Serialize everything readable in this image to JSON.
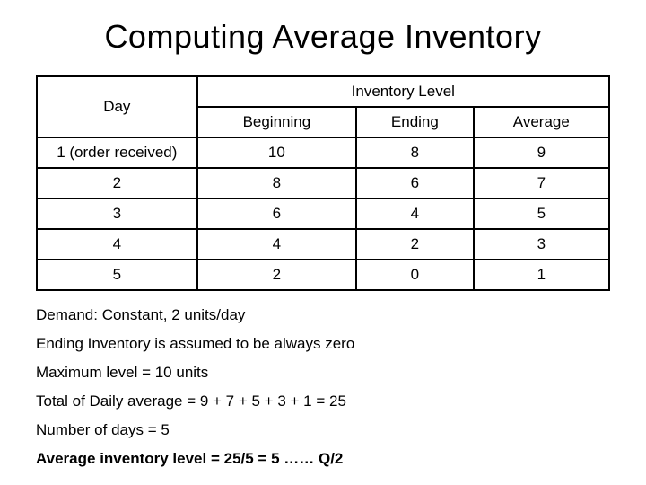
{
  "title": "Computing Average Inventory",
  "table": {
    "day_header": "Day",
    "inventory_header": "Inventory Level",
    "columns": [
      "Beginning",
      "Ending",
      "Average"
    ],
    "rows": [
      {
        "day": "1 (order received)",
        "beginning": "10",
        "ending": "8",
        "average": "9"
      },
      {
        "day": "2",
        "beginning": "8",
        "ending": "6",
        "average": "7"
      },
      {
        "day": "3",
        "beginning": "6",
        "ending": "4",
        "average": "5"
      },
      {
        "day": "4",
        "beginning": "4",
        "ending": "2",
        "average": "3"
      },
      {
        "day": "5",
        "beginning": "2",
        "ending": "0",
        "average": "1"
      }
    ]
  },
  "notes": {
    "line1": "Demand: Constant, 2 units/day",
    "line2": "Ending Inventory is assumed to be always zero",
    "line3": "Maximum level = 10 units",
    "line4": "Total of Daily average = 9 + 7 + 5 + 3 + 1 = 25",
    "line5": "Number of days = 5",
    "line6": "Average inventory level = 25/5 = 5 …… Q/2"
  },
  "styling": {
    "font_family": "Arial",
    "title_fontsize": 36,
    "cell_fontsize": 17,
    "notes_fontsize": 17,
    "border_color": "#000000",
    "border_width": 2,
    "background_color": "#ffffff",
    "text_color": "#000000",
    "col_widths_percent": [
      28,
      24,
      24,
      24
    ]
  }
}
